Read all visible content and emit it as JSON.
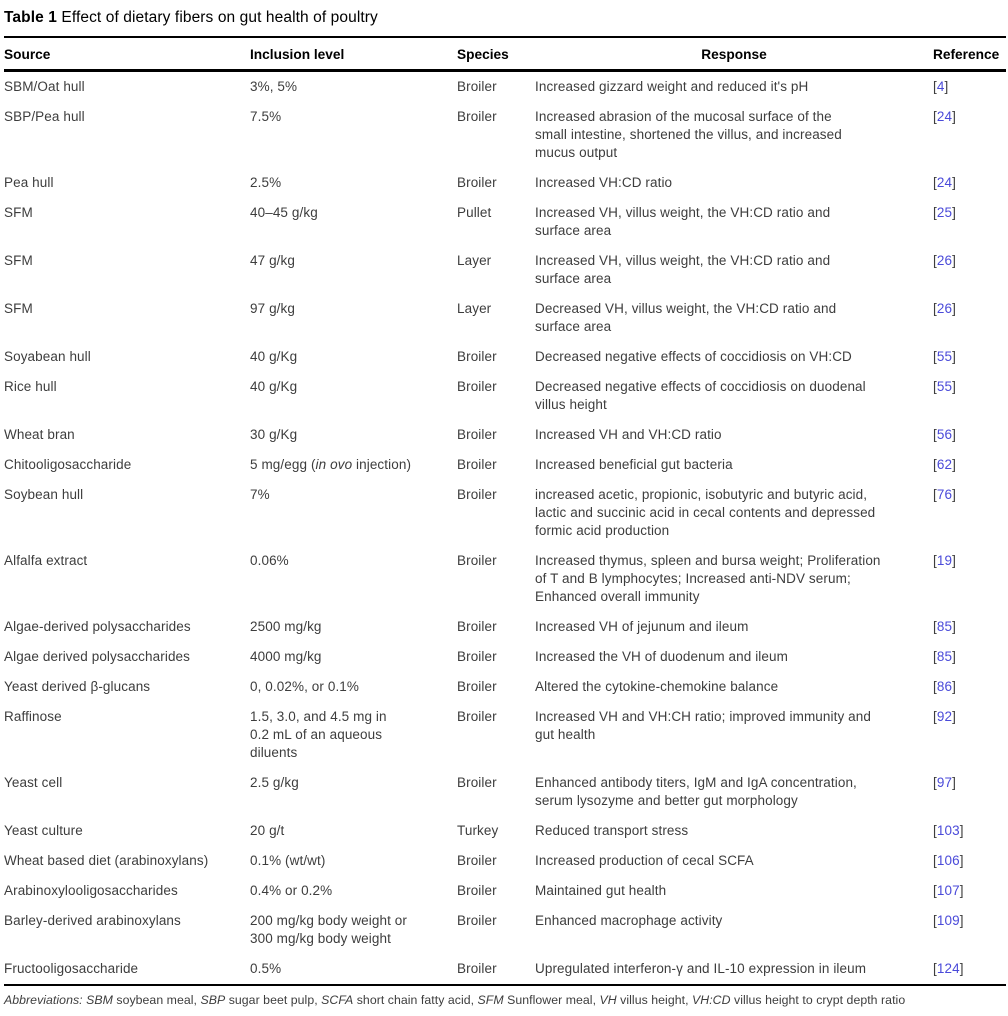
{
  "table": {
    "title_label": "Table 1",
    "title_text": "Effect of dietary fibers on gut health of poultry",
    "columns": [
      "Source",
      "Inclusion level",
      "Species",
      "Response",
      "Reference"
    ],
    "rows": [
      {
        "source": "SBM/Oat hull",
        "inclusion": "3%, 5%",
        "species": "Broiler",
        "response": "Increased gizzard weight and reduced it's pH",
        "reference": "[4]"
      },
      {
        "source": "SBP/Pea hull",
        "inclusion": "7.5%",
        "species": "Broiler",
        "response": "Increased abrasion of the mucosal surface of the\nsmall intestine, shortened the villus, and increased\nmucus output",
        "reference": "[24]"
      },
      {
        "source": "Pea hull",
        "inclusion": "2.5%",
        "species": "Broiler",
        "response": "Increased VH:CD ratio",
        "reference": "[24]"
      },
      {
        "source": "SFM",
        "inclusion": "40–45 g/kg",
        "species": "Pullet",
        "response": "Increased VH, villus weight, the VH:CD ratio and\nsurface area",
        "reference": "[25]"
      },
      {
        "source": "SFM",
        "inclusion": "47 g/kg",
        "species": "Layer",
        "response": "Increased VH, villus weight, the VH:CD ratio and\nsurface area",
        "reference": "[26]"
      },
      {
        "source": "SFM",
        "inclusion": "97 g/kg",
        "species": "Layer",
        "response": "Decreased VH, villus weight, the VH:CD ratio and\nsurface area",
        "reference": "[26]"
      },
      {
        "source": "Soyabean hull",
        "inclusion": "40 g/Kg",
        "species": "Broiler",
        "response": "Decreased negative effects of coccidiosis on VH:CD",
        "reference": "[55]"
      },
      {
        "source": "Rice hull",
        "inclusion": "40 g/Kg",
        "species": "Broiler",
        "response": "Decreased negative effects of coccidiosis on duodenal\nvillus height",
        "reference": "[55]"
      },
      {
        "source": "Wheat bran",
        "inclusion": "30 g/Kg",
        "species": "Broiler",
        "response": "Increased VH and VH:CD ratio",
        "reference": "[56]"
      },
      {
        "source": "Chitooligosaccharide",
        "inclusion": "5 mg/egg (*in ovo* injection)",
        "species": "Broiler",
        "response": "Increased beneficial gut bacteria",
        "reference": "[62]"
      },
      {
        "source": "Soybean hull",
        "inclusion": "7%",
        "species": "Broiler",
        "response": "increased acetic, propionic, isobutyric and butyric acid,\nlactic and succinic acid in cecal contents and depressed\nformic acid production",
        "reference": "[76]"
      },
      {
        "source": "Alfalfa extract",
        "inclusion": "0.06%",
        "species": "Broiler",
        "response": "Increased thymus, spleen and bursa weight; Proliferation\nof T and B lymphocytes; Increased anti-NDV serum;\nEnhanced overall immunity",
        "reference": "[19]"
      },
      {
        "source": "Algae-derived polysaccharides",
        "inclusion": "2500 mg/kg",
        "species": "Broiler",
        "response": "Increased VH of jejunum and ileum",
        "reference": "[85]"
      },
      {
        "source": "Algae derived polysaccharides",
        "inclusion": "4000 mg/kg",
        "species": "Broiler",
        "response": "Increased the VH of duodenum and ileum",
        "reference": "[85]"
      },
      {
        "source": "Yeast derived β-glucans",
        "inclusion": "0, 0.02%, or 0.1%",
        "species": "Broiler",
        "response": "Altered the cytokine-chemokine balance",
        "reference": "[86]"
      },
      {
        "source": "Raffinose",
        "inclusion": "1.5, 3.0, and 4.5 mg in\n0.2 mL of an aqueous\ndiluents",
        "species": "Broiler",
        "response": "Increased VH and VH:CH ratio; improved immunity and\ngut health",
        "reference": "[92]"
      },
      {
        "source": "Yeast cell",
        "inclusion": "2.5 g/kg",
        "species": "Broiler",
        "response": "Enhanced antibody titers, IgM and IgA concentration,\nserum lysozyme and better gut morphology",
        "reference": "[97]"
      },
      {
        "source": "Yeast culture",
        "inclusion": "20 g/t",
        "species": "Turkey",
        "response": "Reduced transport stress",
        "reference": "[103]"
      },
      {
        "source": "Wheat based diet (arabinoxylans)",
        "inclusion": "0.1% (wt/wt)",
        "species": "Broiler",
        "response": "Increased production of cecal SCFA",
        "reference": "[106]"
      },
      {
        "source": "Arabinoxylooligosaccharides",
        "inclusion": "0.4% or 0.2%",
        "species": "Broiler",
        "response": "Maintained gut health",
        "reference": "[107]"
      },
      {
        "source": "Barley-derived arabinoxylans",
        "inclusion": "200 mg/kg body weight or\n300 mg/kg body weight",
        "species": "Broiler",
        "response": "Enhanced macrophage activity",
        "reference": "[109]"
      },
      {
        "source": "Fructooligosaccharide",
        "inclusion": "0.5%",
        "species": "Broiler",
        "response": "Upregulated interferon-γ and IL-10 expression in ileum",
        "reference": "[124]"
      }
    ],
    "footnote": "*Abbreviations:* *SBM* soybean meal, *SBP* sugar beet pulp, *SCFA* short chain fatty acid, *SFM* Sunflower meal, *VH* villus height, *VH:CD* villus height to crypt depth ratio"
  },
  "colors": {
    "reference_link": "#4a4ad9",
    "rule": "#000000",
    "body_text": "#3d3d3d"
  }
}
